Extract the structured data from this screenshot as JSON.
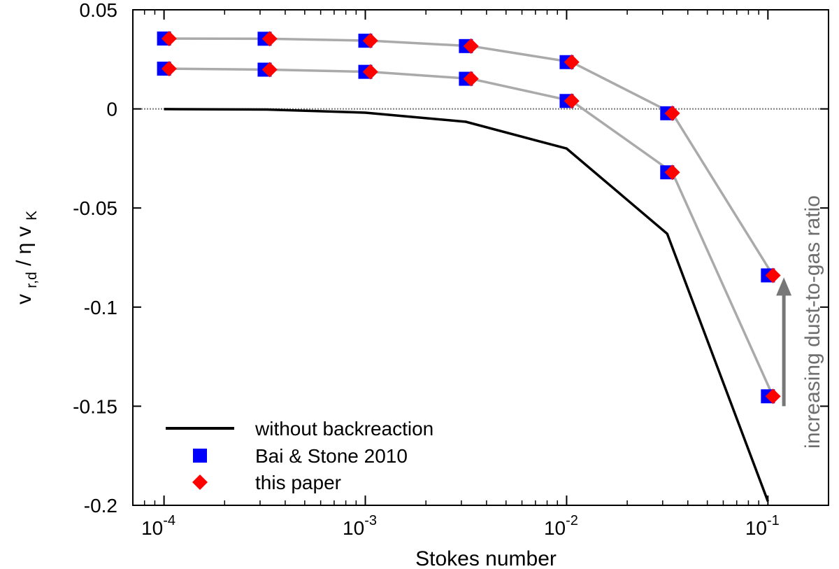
{
  "chart_data": {
    "type": "line",
    "title": "",
    "xlabel": "Stokes number",
    "ylabel": "v_r,d / ηv_K",
    "ylabel_parts": {
      "v": "v",
      "sub1": "r,d",
      "sep": " / ",
      "eta": "η",
      "v2": "v",
      "sub2": "K"
    },
    "xscale": "log",
    "xlim": [
      7e-05,
      0.2
    ],
    "ylim": [
      -0.2,
      0.05
    ],
    "x_ticks": [
      {
        "value": 0.0001,
        "base": "10",
        "exp": "-4"
      },
      {
        "value": 0.001,
        "base": "10",
        "exp": "-3"
      },
      {
        "value": 0.01,
        "base": "10",
        "exp": "-2"
      },
      {
        "value": 0.1,
        "base": "10",
        "exp": "-1"
      }
    ],
    "y_ticks": [
      {
        "value": 0.05,
        "label": "0.05"
      },
      {
        "value": 0,
        "label": "0"
      },
      {
        "value": -0.05,
        "label": "-0.05"
      },
      {
        "value": -0.1,
        "label": "-0.1"
      },
      {
        "value": -0.15,
        "label": "-0.15"
      },
      {
        "value": -0.2,
        "label": "-0.2"
      }
    ],
    "zero_line": true,
    "series": [
      {
        "name": "without backreaction",
        "style": "line",
        "color": "#000000",
        "x": [
          0.0001,
          0.000316,
          0.001,
          0.00316,
          0.01,
          0.0316,
          0.1
        ],
        "y": [
          -0.0001,
          -0.0003,
          -0.0019,
          -0.0065,
          -0.02,
          -0.063,
          -0.198
        ]
      },
      {
        "name": "Bai & Stone 2010",
        "style": "square",
        "color": "#0000ff",
        "x": [
          0.0001,
          0.000316,
          0.001,
          0.00316,
          0.01,
          0.0316,
          0.1,
          0.0001,
          0.000316,
          0.001,
          0.00316,
          0.01,
          0.0316,
          0.1
        ],
        "y": [
          0.0355,
          0.0354,
          0.0344,
          0.0317,
          0.0236,
          -0.0022,
          -0.084,
          0.0203,
          0.0198,
          0.0187,
          0.0152,
          0.004,
          -0.032,
          -0.145
        ]
      },
      {
        "name": "this paper",
        "style": "diamond",
        "color": "#ff0000",
        "x": [
          0.000106,
          0.000335,
          0.00106,
          0.00335,
          0.0106,
          0.0335,
          0.106,
          0.000106,
          0.000335,
          0.00106,
          0.00335,
          0.0106,
          0.0335,
          0.106
        ],
        "y": [
          0.0355,
          0.0354,
          0.0344,
          0.0317,
          0.0236,
          -0.0022,
          -0.084,
          0.0203,
          0.0198,
          0.0187,
          0.0152,
          0.004,
          -0.032,
          -0.145
        ]
      }
    ],
    "guide_lines": [
      {
        "color": "#aaaaaa",
        "x": [
          0.000106,
          0.000335,
          0.00106,
          0.00335,
          0.0106,
          0.0335,
          0.106
        ],
        "y": [
          0.0355,
          0.0354,
          0.0344,
          0.0317,
          0.0236,
          -0.0022,
          -0.084
        ]
      },
      {
        "color": "#aaaaaa",
        "x": [
          0.000106,
          0.000335,
          0.00106,
          0.00335,
          0.0106,
          0.0335,
          0.106
        ],
        "y": [
          0.0203,
          0.0198,
          0.0187,
          0.0152,
          0.004,
          -0.032,
          -0.145
        ]
      }
    ],
    "legend": {
      "position": "bottom-left",
      "entries": [
        {
          "label": "without backreaction",
          "marker": "line"
        },
        {
          "label": "Bai & Stone 2010",
          "marker": "square"
        },
        {
          "label": "this paper",
          "marker": "diamond"
        }
      ]
    },
    "annotation": {
      "text": "increasing dust-to-gas ratio",
      "color": "#777777",
      "arrow_from": {
        "x": 0.12,
        "y": -0.15
      },
      "arrow_to": {
        "x": 0.12,
        "y": -0.085
      }
    }
  }
}
